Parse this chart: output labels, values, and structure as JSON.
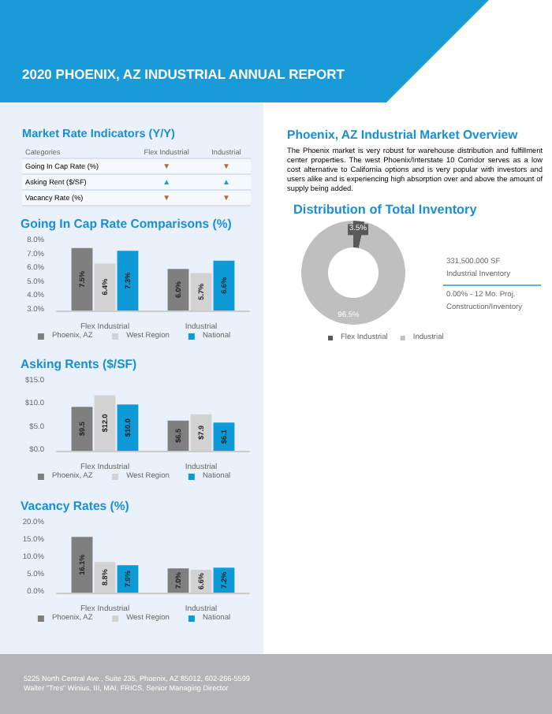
{
  "chart_data": [
    {
      "type": "other",
      "title": "2020 PHOENIX, AZ INDUSTRIAL ANNUAL REPORT",
      "annotations": [
        "5225 North Central Ave., Suite 235, Phoenix, AZ 85012, 602-266-5599",
        "Walter \"Tres\" Winius, III, MAI, FRICS, Senior Managing Director"
      ]
    },
    {
      "type": "other",
      "title": "Market Rate Indicators (Y/Y)",
      "annotations": [
        "Categories"
      ],
      "categories": [
        "Flex Industrial",
        "Industrial"
      ],
      "y_categories": [
        "Going In Cap Rate (%)",
        "Asking Rent ($/SF)",
        "Vacancy Rate (%)"
      ],
      "cell_labels": [
        [
          "▼",
          "▼"
        ],
        [
          "▲",
          "▲"
        ],
        [
          "▼",
          "▼"
        ]
      ]
    },
    {
      "type": "bar",
      "title": "Going In Cap Rate Comparisons (%)",
      "categories": [
        "Flex Industrial",
        "Industrial"
      ],
      "series": [
        {
          "name": "Phoenix, AZ",
          "color": "#7f7f7f",
          "values": [
            7.5,
            6.0
          ],
          "value_labels": [
            "7.5%",
            "6.0%"
          ]
        },
        {
          "name": "West Region",
          "color": "#d2d2d2",
          "values": [
            6.4,
            5.7
          ],
          "value_labels": [
            "6.4%",
            "5.7%"
          ]
        },
        {
          "name": "National",
          "color": "#0d9ad6",
          "values": [
            7.3,
            6.6
          ],
          "value_labels": [
            "7.3%",
            "6.6%"
          ]
        }
      ],
      "ylim": [
        3,
        8
      ],
      "yticks": [
        {
          "value": 3,
          "label": "3.0%"
        },
        {
          "value": 4,
          "label": "4.0%"
        },
        {
          "value": 5,
          "label": "5.0%"
        },
        {
          "value": 6,
          "label": "6.0%"
        },
        {
          "value": 7,
          "label": "7.0%"
        },
        {
          "value": 8,
          "label": "8.0%"
        }
      ],
      "grid": false,
      "legend": "bottom"
    },
    {
      "type": "bar",
      "title": "Asking Rents ($/SF)",
      "categories": [
        "Flex Industrial",
        "Industrial"
      ],
      "series": [
        {
          "name": "Phoenix, AZ",
          "color": "#7f7f7f",
          "values": [
            9.5,
            6.5
          ],
          "value_labels": [
            "$9.5",
            "$6.5"
          ]
        },
        {
          "name": "West Region",
          "color": "#d2d2d2",
          "values": [
            12.0,
            7.9
          ],
          "value_labels": [
            "$12.0",
            "$7.9"
          ]
        },
        {
          "name": "National",
          "color": "#0d9ad6",
          "values": [
            10.0,
            6.1
          ],
          "value_labels": [
            "$10.0",
            "$6.1"
          ]
        }
      ],
      "ylim": [
        0,
        15
      ],
      "yticks": [
        {
          "value": 0,
          "label": "$0.0"
        },
        {
          "value": 5,
          "label": "$5.0"
        },
        {
          "value": 10,
          "label": "$10.0"
        },
        {
          "value": 15,
          "label": "$15.0"
        }
      ],
      "grid": false,
      "legend": "bottom"
    },
    {
      "type": "bar",
      "title": "Vacancy Rates (%)",
      "categories": [
        "Flex Industrial",
        "Industrial"
      ],
      "series": [
        {
          "name": "Phoenix, AZ",
          "color": "#7f7f7f",
          "values": [
            16.1,
            7.0
          ],
          "value_labels": [
            "16.1%",
            "7.0%"
          ]
        },
        {
          "name": "West Region",
          "color": "#d2d2d2",
          "values": [
            8.8,
            6.6
          ],
          "value_labels": [
            "8.8%",
            "6.6%"
          ]
        },
        {
          "name": "National",
          "color": "#0d9ad6",
          "values": [
            7.9,
            7.2
          ],
          "value_labels": [
            "7.9%",
            "7.2%"
          ]
        }
      ],
      "ylim": [
        0,
        20
      ],
      "yticks": [
        {
          "value": 0,
          "label": "0.0%"
        },
        {
          "value": 5,
          "label": "5.0%"
        },
        {
          "value": 10,
          "label": "10.0%"
        },
        {
          "value": 15,
          "label": "15.0%"
        },
        {
          "value": 20,
          "label": "20.0%"
        }
      ],
      "grid": false,
      "legend": "bottom"
    },
    {
      "type": "other",
      "title": "Phoenix, AZ Industrial Market Overview",
      "annotations": [
        "The Phoenix market is very robust for warehouse distribution and fulfillment center properties. The west Phoenix/Interstate 10 Corridor serves as a low cost alternative to California options and is very popular with investors and users alike and is experiencing high absorption over and above the amount of supply being added."
      ]
    },
    {
      "type": "donut",
      "title": "Distribution of Total Inventory",
      "categories": [
        "Flex Industrial",
        "Industrial"
      ],
      "values": [
        3.5,
        96.5
      ],
      "colors": [
        "#595959",
        "#bfbfbf"
      ],
      "value_labels": [
        "3.5%",
        "96.5%"
      ],
      "legend": "bottom",
      "annotations": [
        "331,500,000 SF",
        "Industrial Inventory",
        "0.00% - 12 Mo. Proj.",
        "Construction/Inventory"
      ]
    }
  ]
}
